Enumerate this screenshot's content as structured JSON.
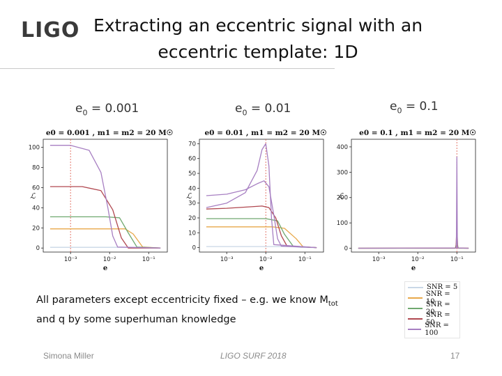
{
  "slide": {
    "logo": "LIGO",
    "title_line1": "Extracting an eccentric signal with an",
    "title_line2": "eccentric template: 1D",
    "body_line1_pre": "All parameters except eccentricity fixed – e.g. we know M",
    "body_line1_sub": "tot",
    "body_line2": "and q by some superhuman knowledge",
    "footer_left": "Simona Miller",
    "footer_center": "LIGO SURF 2018",
    "footer_right": "17"
  },
  "legend": [
    {
      "label": "SNR = 5",
      "color": "#c9d7e6"
    },
    {
      "label": "SNR = 10",
      "color": "#e8a84a"
    },
    {
      "label": "SNR = 20",
      "color": "#6fa86f"
    },
    {
      "label": "SNR = 50",
      "color": "#b0474f"
    },
    {
      "label": "SNR = 100",
      "color": "#a77fc2"
    }
  ],
  "chart_data": [
    {
      "type": "line",
      "panel_label": {
        "e": "e",
        "sub": "0",
        "rest": " = 0.001"
      },
      "title": "e0 = 0.001 , m1 = m2 = 20 M☉",
      "xlabel": "e",
      "ylabel": "ℒ",
      "x_scale": "log",
      "xlim": [
        0.0002,
        0.3
      ],
      "x_ticks": [
        {
          "v": 0.001,
          "label": "10⁻³"
        },
        {
          "v": 0.01,
          "label": "10⁻²"
        },
        {
          "v": 0.1,
          "label": "10⁻¹"
        }
      ],
      "ylim": [
        -4,
        108
      ],
      "y_ticks": [
        0,
        20,
        40,
        60,
        80,
        100
      ],
      "true_value": 0.001,
      "series": [
        {
          "name": "SNR = 5",
          "x": [
            0.0003,
            0.01,
            0.03,
            0.06,
            0.1,
            0.2
          ],
          "y": [
            0.7,
            0.7,
            0.7,
            0.6,
            0.2,
            0
          ]
        },
        {
          "name": "SNR = 10",
          "x": [
            0.0003,
            0.01,
            0.025,
            0.04,
            0.07,
            0.2
          ],
          "y": [
            19,
            19,
            19,
            14,
            1,
            0
          ]
        },
        {
          "name": "SNR = 20",
          "x": [
            0.0003,
            0.008,
            0.018,
            0.03,
            0.05,
            0.2
          ],
          "y": [
            31,
            31,
            30,
            15,
            1,
            0
          ]
        },
        {
          "name": "SNR = 50",
          "x": [
            0.0003,
            0.002,
            0.006,
            0.012,
            0.02,
            0.03,
            0.2
          ],
          "y": [
            61,
            61,
            57,
            38,
            10,
            0,
            0
          ]
        },
        {
          "name": "SNR = 100",
          "x": [
            0.0003,
            0.001,
            0.003,
            0.006,
            0.009,
            0.012,
            0.016,
            0.2
          ],
          "y": [
            102,
            102,
            97,
            75,
            40,
            12,
            1,
            0
          ]
        }
      ]
    },
    {
      "type": "line",
      "panel_label": {
        "e": "e",
        "sub": "0",
        "rest": " = 0.01"
      },
      "title": "e0 = 0.01 , m1 = m2 = 20 M☉",
      "xlabel": "e",
      "ylabel": "ℒ",
      "x_scale": "log",
      "xlim": [
        0.0002,
        0.3
      ],
      "x_ticks": [
        {
          "v": 0.001,
          "label": "10⁻³"
        },
        {
          "v": 0.01,
          "label": "10⁻²"
        },
        {
          "v": 0.1,
          "label": "10⁻¹"
        }
      ],
      "ylim": [
        -3,
        73
      ],
      "y_ticks": [
        0,
        10,
        20,
        30,
        40,
        50,
        60,
        70
      ],
      "true_value": 0.01,
      "series": [
        {
          "name": "SNR = 5",
          "x": [
            0.0003,
            0.03,
            0.05,
            0.08,
            0.2
          ],
          "y": [
            0.7,
            0.7,
            0.6,
            0.1,
            0
          ]
        },
        {
          "name": "SNR = 10",
          "x": [
            0.0003,
            0.015,
            0.03,
            0.06,
            0.09,
            0.2
          ],
          "y": [
            14,
            14,
            13,
            6,
            0.5,
            0
          ]
        },
        {
          "name": "SNR = 20",
          "x": [
            0.0003,
            0.01,
            0.02,
            0.03,
            0.05,
            0.2
          ],
          "y": [
            19.5,
            19.5,
            18,
            9,
            1,
            0
          ]
        },
        {
          "name": "SNR = 50",
          "x": [
            0.0003,
            0.001,
            0.004,
            0.008,
            0.012,
            0.018,
            0.025,
            0.035,
            0.2
          ],
          "y": [
            26,
            26.5,
            27.5,
            28,
            27,
            20,
            8,
            1,
            0
          ]
        },
        {
          "name": "SNR = 100",
          "x": [
            0.0003,
            0.001,
            0.003,
            0.006,
            0.009,
            0.012,
            0.016,
            0.02,
            0.025,
            0.2
          ],
          "y": [
            35,
            36,
            39,
            43,
            45,
            41,
            22,
            6,
            1,
            0
          ]
        },
        {
          "name": "SNR = 100 ",
          "x": [
            0.0003,
            0.001,
            0.003,
            0.006,
            0.008,
            0.01,
            0.012,
            0.014,
            0.016,
            0.2
          ],
          "y": [
            27,
            30,
            37,
            52,
            66,
            70,
            55,
            20,
            2,
            0
          ],
          "color_key": 4
        }
      ]
    },
    {
      "type": "line",
      "panel_label": {
        "e": "e",
        "sub": "0",
        "rest": " = 0.1"
      },
      "title": "e0 = 0.1 , m1 = m2 = 20 M☉",
      "xlabel": "e",
      "ylabel": "ℒ",
      "x_scale": "log",
      "xlim": [
        0.0002,
        0.3
      ],
      "x_ticks": [
        {
          "v": 0.001,
          "label": "10⁻³"
        },
        {
          "v": 0.01,
          "label": "10⁻²"
        },
        {
          "v": 0.1,
          "label": "10⁻¹"
        }
      ],
      "ylim": [
        -15,
        430
      ],
      "y_ticks": [
        0,
        100,
        200,
        300,
        400
      ],
      "true_value": 0.1,
      "series": [
        {
          "name": "SNR = 5",
          "x": [
            0.0003,
            0.09,
            0.1,
            0.11,
            0.2
          ],
          "y": [
            0,
            0,
            3,
            0,
            0
          ]
        },
        {
          "name": "SNR = 10",
          "x": [
            0.0003,
            0.09,
            0.1,
            0.11,
            0.2
          ],
          "y": [
            0,
            0,
            12,
            0,
            0
          ]
        },
        {
          "name": "SNR = 20",
          "x": [
            0.0003,
            0.092,
            0.1,
            0.108,
            0.2
          ],
          "y": [
            0,
            0,
            30,
            0,
            0
          ]
        },
        {
          "name": "SNR = 50",
          "x": [
            0.0003,
            0.095,
            0.1,
            0.105,
            0.2
          ],
          "y": [
            0,
            1,
            90,
            1,
            0
          ]
        },
        {
          "name": "SNR = 100",
          "x": [
            0.0003,
            0.097,
            0.1,
            0.103,
            0.2
          ],
          "y": [
            0,
            1,
            360,
            1,
            0
          ]
        }
      ]
    }
  ]
}
